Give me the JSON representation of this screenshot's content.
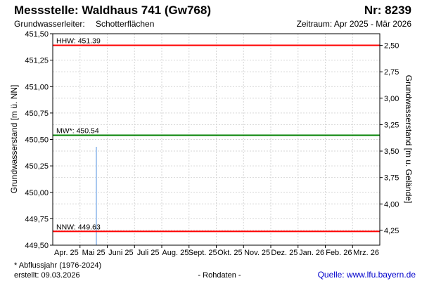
{
  "header": {
    "title": "Messstelle: Waldhaus 741 (Gw768)",
    "number": "Nr: 8239",
    "aquifer_label": "Grundwasserleiter:",
    "aquifer_value": "Schotterflächen",
    "period": "Zeitraum: Apr 2025 - Mär 2026"
  },
  "footer": {
    "note": "* Abflussjahr (1976-2024)",
    "created": "erstellt:  09.03.2026",
    "raw": "- Rohdaten -",
    "source": "Quelle: www.lfu.bayern.de"
  },
  "colors": {
    "extreme_line": "#ff0000",
    "mean_line": "#008000",
    "measurement": "#a8c8f0",
    "grid": "#d6d6d6"
  },
  "chart_data": {
    "type": "line",
    "xlabel": "",
    "ylabel": "Grundwasserstand [m ü. NN]",
    "y2label": "Grundwasserstand [m u. Gelände]",
    "ylim": [
      449.5,
      451.5
    ],
    "y2lim": [
      4.39,
      2.39
    ],
    "categories": [
      "Apr. 25",
      "Mai 25",
      "Juni 25",
      "Juli 25",
      "Aug. 25",
      "Sept. 25",
      "Okt. 25",
      "Nov. 25",
      "Dez. 25",
      "Jan. 26",
      "Feb. 26",
      "Mrz. 26"
    ],
    "y_ticks": [
      "449,50",
      "449,75",
      "450,00",
      "450,25",
      "450,50",
      "450,75",
      "451,00",
      "451,25",
      "451,50"
    ],
    "y2_ticks": [
      "2,50",
      "2,75",
      "3,00",
      "3,25",
      "3,50",
      "3,75",
      "4,00",
      "4,25"
    ],
    "reference_lines": [
      {
        "label": "HHW: 451.39",
        "value": 451.39,
        "color": "#ff0000"
      },
      {
        "label": "MW*: 450.54",
        "value": 450.54,
        "color": "#008000"
      },
      {
        "label": "NNW: 449.63",
        "value": 449.63,
        "color": "#ff0000"
      }
    ],
    "series": [
      {
        "values": [
          {
            "month": 1.6,
            "low": 449.5,
            "high": 450.43
          }
        ]
      }
    ],
    "grid": true
  }
}
